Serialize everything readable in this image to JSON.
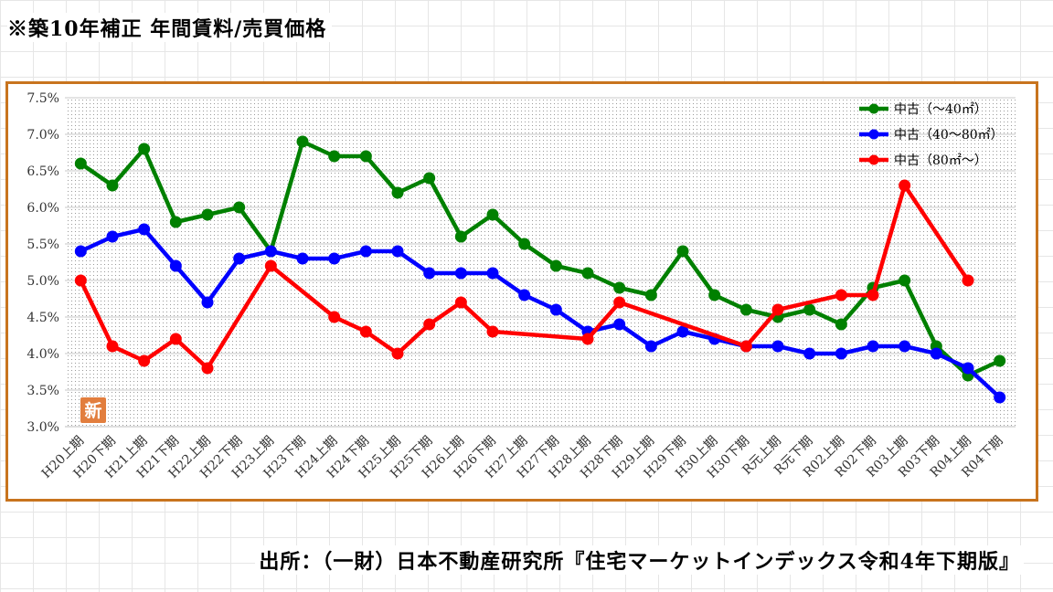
{
  "page": {
    "title": "※築10年補正 年間賃料/売買価格",
    "source": "出所：（一財）日本不動産研究所『住宅マーケットインデックス令和4年下期版』"
  },
  "chart_data": {
    "type": "line",
    "categories": [
      "H20上期",
      "H20下期",
      "H21上期",
      "H21下期",
      "H22上期",
      "H22下期",
      "H23上期",
      "H23下期",
      "H24上期",
      "H24下期",
      "H25上期",
      "H25下期",
      "H26上期",
      "H26下期",
      "H27上期",
      "H27下期",
      "H28上期",
      "H28下期",
      "H29上期",
      "H29下期",
      "H30上期",
      "H30下期",
      "R元上期",
      "R元下期",
      "R02上期",
      "R02下期",
      "R03上期",
      "R03下期",
      "R04上期",
      "R04下期"
    ],
    "yticks": [
      "3.0%",
      "3.5%",
      "4.0%",
      "4.5%",
      "5.0%",
      "5.5%",
      "6.0%",
      "6.5%",
      "7.0%",
      "7.5%"
    ],
    "ylim": [
      3.0,
      7.5
    ],
    "grid": true,
    "legend_position": "top-right",
    "badge": "新",
    "series": [
      {
        "name": "中古（～40㎡）",
        "color": "#008000",
        "values": [
          6.6,
          6.3,
          6.8,
          5.8,
          5.9,
          6.0,
          5.4,
          6.9,
          6.7,
          6.7,
          6.2,
          6.4,
          5.6,
          5.9,
          5.5,
          5.2,
          5.1,
          4.9,
          4.8,
          5.4,
          4.8,
          4.6,
          4.5,
          4.6,
          4.4,
          4.9,
          5.0,
          4.1,
          3.7,
          3.9
        ]
      },
      {
        "name": "中古（40～80㎡）",
        "color": "#0000ff",
        "values": [
          5.4,
          5.6,
          5.7,
          5.2,
          4.7,
          5.3,
          5.4,
          5.3,
          5.3,
          5.4,
          5.4,
          5.1,
          5.1,
          5.1,
          4.8,
          4.6,
          4.3,
          4.4,
          4.1,
          4.3,
          4.2,
          4.1,
          4.1,
          4.0,
          4.0,
          4.1,
          4.1,
          4.0,
          3.8,
          3.4
        ]
      },
      {
        "name": "中古（80㎡～）",
        "color": "#ff0000",
        "values": [
          5.0,
          4.1,
          3.9,
          4.2,
          3.8,
          null,
          5.2,
          null,
          4.5,
          4.3,
          4.0,
          4.4,
          4.7,
          4.3,
          null,
          null,
          4.2,
          4.7,
          null,
          null,
          null,
          4.1,
          4.6,
          null,
          4.8,
          4.8,
          6.3,
          null,
          5.0,
          null
        ]
      }
    ]
  }
}
